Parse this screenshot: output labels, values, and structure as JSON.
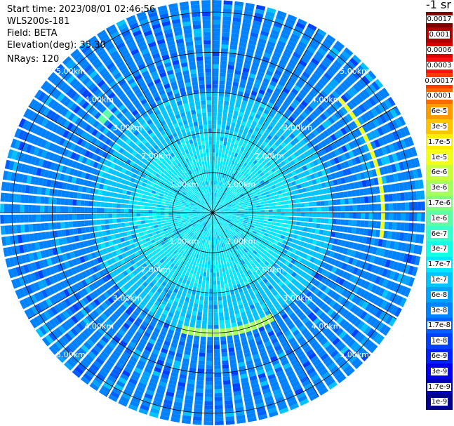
{
  "info": {
    "start_time": "Start time: 2023/08/01 02:46:56",
    "instrument": "WLS200s-181",
    "field": "Field: BETA",
    "elevation": "Elevation(deg): 35.30",
    "nrays": "NRays: 120"
  },
  "colorbar": {
    "unit_label": "-1 sr",
    "ticks": [
      "0.0017",
      "0.001",
      "0.0006",
      "0.0003",
      "0.00017",
      "0.0001",
      "6e-5",
      "3e-5",
      "1.7e-5",
      "1e-5",
      "6e-6",
      "3e-6",
      "1.7e-6",
      "1e-6",
      "6e-7",
      "3e-7",
      "1.7e-7",
      "1e-7",
      "6e-8",
      "3e-8",
      "1.7e-8",
      "1e-8",
      "6e-9",
      "3e-9",
      "1.7e-9",
      "1e-9"
    ],
    "colors": [
      "#7f0000",
      "#b00000",
      "#d80000",
      "#ff1010",
      "#ff3a00",
      "#ff6a00",
      "#ff9a00",
      "#ffc400",
      "#ffee00",
      "#f2ff1a",
      "#c8ff3a",
      "#a6ff5a",
      "#7fff80",
      "#5cffa6",
      "#38ffcc",
      "#14ffe6",
      "#00e8ff",
      "#00c4ff",
      "#00a2ff",
      "#0082ff",
      "#0060ff",
      "#0040ff",
      "#0020ff",
      "#0000e8",
      "#0000b8",
      "#00008a"
    ],
    "label_colors": [
      "#000000",
      "#000000",
      "#000000",
      "#000000",
      "#000000",
      "#000000",
      "#000000",
      "#000000",
      "#000000",
      "#000000",
      "#000000",
      "#000000",
      "#000000",
      "#000000",
      "#000000",
      "#000000",
      "#000000",
      "#000000",
      "#000000",
      "#000000",
      "#000000",
      "#000000",
      "#000000",
      "#000000",
      "#000000",
      "#000000"
    ]
  },
  "chart_data": {
    "type": "heatmap",
    "projection": "polar",
    "nrays": 120,
    "range_rings_km": [
      1.0,
      2.0,
      3.0,
      4.0,
      5.0
    ],
    "ring_labels": [
      "1.00km",
      "2.00km",
      "3.00km",
      "4.00km",
      "5.00km"
    ],
    "max_range_km": 5.3,
    "spoke_angles_deg": [
      0,
      30,
      60,
      90,
      120,
      150,
      180,
      210,
      240,
      270,
      300,
      330
    ],
    "gates_per_ray": 53,
    "color_scale": "log",
    "value_range": [
      1e-09,
      0.0017
    ],
    "dominant_values_by_range": [
      {
        "range_km": [
          0.0,
          2.0
        ],
        "value": "1.7e-7"
      },
      {
        "range_km": [
          2.0,
          3.0
        ],
        "value": "1e-7"
      },
      {
        "range_km": [
          3.0,
          5.3
        ],
        "value": "3e-8"
      }
    ],
    "features": [
      {
        "desc": "enhanced backscatter arc",
        "range_km": 3.0,
        "azimuth_deg": [
          150,
          196
        ],
        "value": "3e-6"
      },
      {
        "desc": "enhanced backscatter arc",
        "range_km": 4.25,
        "azimuth_deg": [
          48,
          100
        ],
        "value": "1e-5"
      },
      {
        "desc": "enhanced backscatter arc",
        "range_km": 3.6,
        "azimuth_deg": [
          -52,
          -44
        ],
        "value": "1e-6"
      }
    ]
  }
}
